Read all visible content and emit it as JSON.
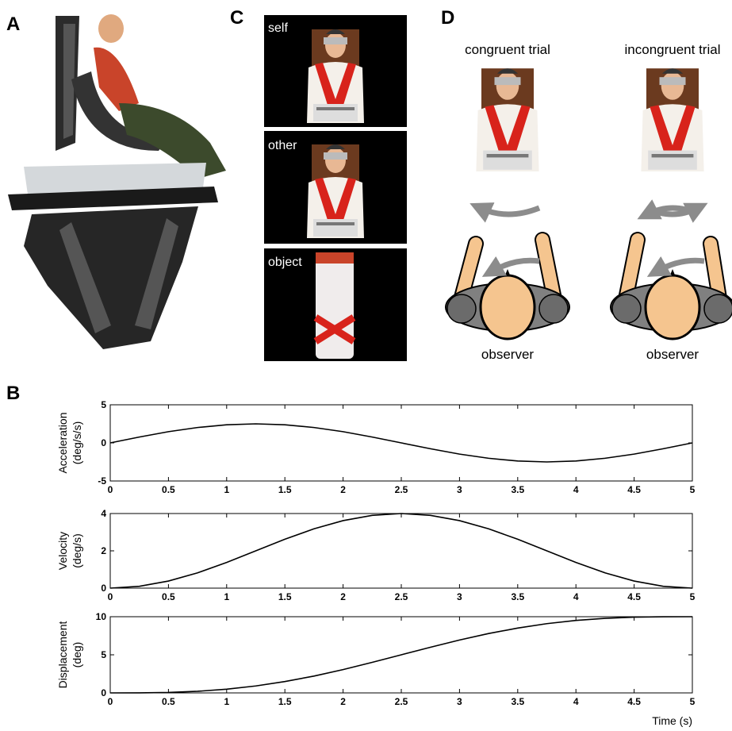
{
  "figure": {
    "letters": [
      "A",
      "B",
      "C",
      "D"
    ],
    "photo_labels": [
      "self",
      "other",
      "object"
    ],
    "trials": [
      "congruent trial",
      "incongruent trial"
    ],
    "observers": [
      "observer",
      "observer"
    ]
  },
  "chart_data": [
    {
      "type": "line",
      "ylabel": [
        "Acceleration",
        "(deg/s/s)"
      ],
      "color": "#000000",
      "x": [
        0,
        0.25,
        0.5,
        0.75,
        1,
        1.25,
        1.5,
        1.75,
        2,
        2.25,
        2.5,
        2.75,
        3,
        3.25,
        3.5,
        3.75,
        4,
        4.25,
        4.5,
        4.75,
        5
      ],
      "values": [
        0,
        0.77,
        1.47,
        2.02,
        2.38,
        2.5,
        2.38,
        2.02,
        1.47,
        0.77,
        0,
        -0.77,
        -1.47,
        -2.02,
        -2.38,
        -2.5,
        -2.38,
        -2.02,
        -1.47,
        -0.77,
        0
      ],
      "xlim": [
        0,
        5
      ],
      "xticks": [
        0,
        0.5,
        1,
        1.5,
        2,
        2.5,
        3,
        3.5,
        4,
        4.5,
        5
      ],
      "ylim": [
        -5,
        5
      ],
      "yticks": [
        -5,
        0,
        5
      ]
    },
    {
      "type": "line",
      "ylabel": [
        "Velocity",
        "(deg/s)"
      ],
      "color": "#000000",
      "x": [
        0,
        0.25,
        0.5,
        0.75,
        1,
        1.25,
        1.5,
        1.75,
        2,
        2.25,
        2.5,
        2.75,
        3,
        3.25,
        3.5,
        3.75,
        4,
        4.25,
        4.5,
        4.75,
        5
      ],
      "values": [
        0,
        0.1,
        0.38,
        0.82,
        1.38,
        2,
        2.62,
        3.18,
        3.62,
        3.9,
        4,
        3.9,
        3.62,
        3.18,
        2.62,
        2,
        1.38,
        0.82,
        0.38,
        0.1,
        0
      ],
      "xlim": [
        0,
        5
      ],
      "xticks": [
        0,
        0.5,
        1,
        1.5,
        2,
        2.5,
        3,
        3.5,
        4,
        4.5,
        5
      ],
      "ylim": [
        0,
        4
      ],
      "yticks": [
        0,
        2,
        4
      ]
    },
    {
      "type": "line",
      "ylabel": [
        "Displacement",
        "(deg)"
      ],
      "xlabel": "Time (s)",
      "color": "#000000",
      "x": [
        0,
        0.25,
        0.5,
        0.75,
        1,
        1.25,
        1.5,
        1.75,
        2,
        2.25,
        2.5,
        2.75,
        3,
        3.25,
        3.5,
        3.75,
        4,
        4.25,
        4.5,
        4.75,
        5
      ],
      "values": [
        0,
        0.01,
        0.06,
        0.21,
        0.49,
        0.91,
        1.49,
        2.21,
        3.06,
        4.01,
        5,
        5.99,
        6.94,
        7.79,
        8.51,
        9.09,
        9.51,
        9.79,
        9.94,
        9.99,
        10
      ],
      "xlim": [
        0,
        5
      ],
      "xticks": [
        0,
        0.5,
        1,
        1.5,
        2,
        2.5,
        3,
        3.5,
        4,
        4.5,
        5
      ],
      "ylim": [
        0,
        10
      ],
      "yticks": [
        0,
        5,
        10
      ]
    }
  ]
}
